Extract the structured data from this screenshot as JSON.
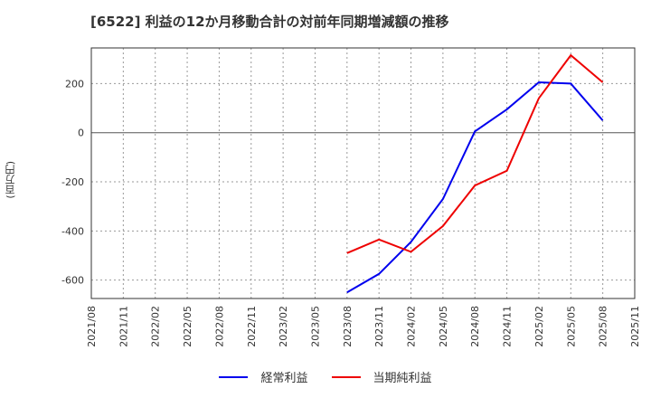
{
  "title": "[6522]  利益の12か月移動合計の対前年同期増減額の推移",
  "y_axis_label": "(百万円)",
  "legend": [
    {
      "label": "経常利益",
      "color": "#0000ee"
    },
    {
      "label": "当期純利益",
      "color": "#ee0000"
    }
  ],
  "chart_data": {
    "type": "line",
    "title": "[6522]  利益の12か月移動合計の対前年同期増減額の推移",
    "xlabel": "",
    "ylabel": "(百万円)",
    "ylim": [
      -675,
      345
    ],
    "yticks": [
      200,
      0,
      -200,
      -400,
      -600
    ],
    "grid": true,
    "legend_position": "bottom",
    "x_tick_labels": [
      "2021/08",
      "2021/11",
      "2022/02",
      "2022/05",
      "2022/08",
      "2022/11",
      "2023/02",
      "2023/05",
      "2023/08",
      "2023/11",
      "2024/02",
      "2024/05",
      "2024/08",
      "2024/11",
      "2025/02",
      "2025/05",
      "2025/08",
      "2025/11"
    ],
    "x": [
      "2023/08",
      "2023/11",
      "2024/02",
      "2024/05",
      "2024/08",
      "2024/11",
      "2025/02",
      "2025/05",
      "2025/08"
    ],
    "series": [
      {
        "name": "経常利益",
        "color": "#0000ee",
        "values": [
          -650,
          -575,
          -445,
          -270,
          5,
          95,
          205,
          200,
          50
        ]
      },
      {
        "name": "当期純利益",
        "color": "#ee0000",
        "values": [
          -490,
          -435,
          -485,
          -380,
          -215,
          -155,
          140,
          315,
          205
        ]
      }
    ]
  }
}
